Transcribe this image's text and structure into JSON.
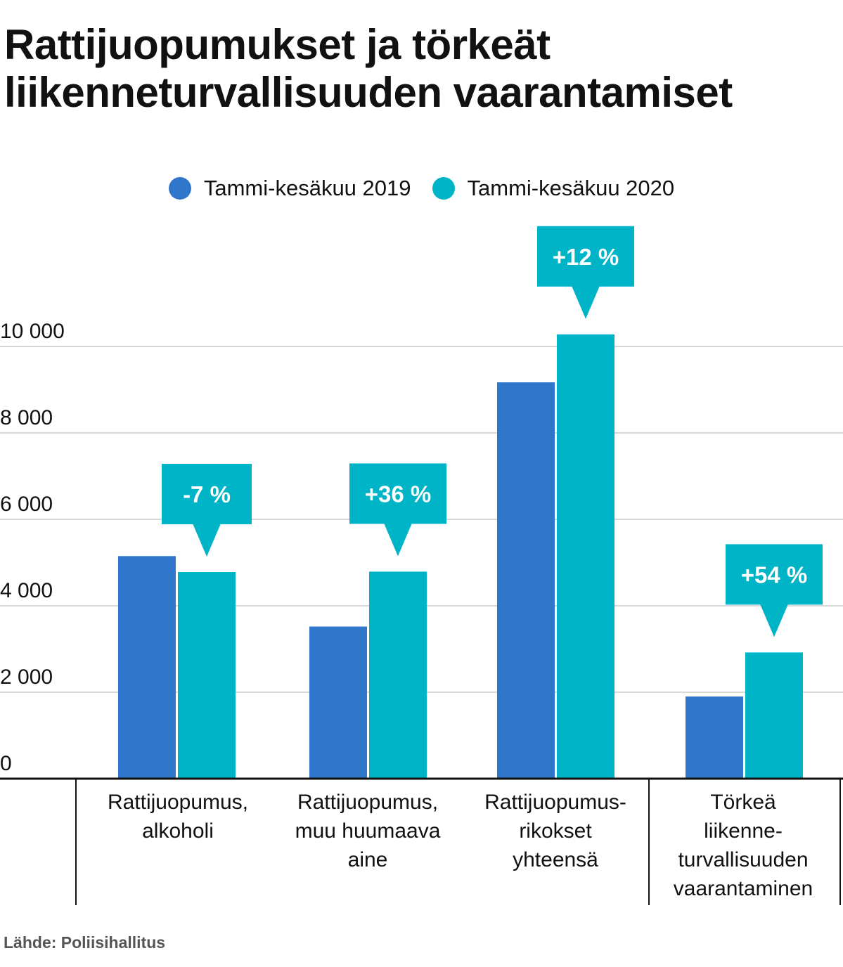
{
  "chart_data": {
    "type": "bar",
    "title_lines": [
      "Rattijuopumukset ja törkeät",
      "liikenneturvallisuuden vaarantamiset"
    ],
    "categories": [
      [
        "Rattijuopumus,",
        "alkoholi"
      ],
      [
        "Rattijuopumus,",
        "muu huumaava",
        "aine"
      ],
      [
        "Rattijuopumus-",
        "rikokset",
        "yhteensä"
      ],
      [
        "Törkeä",
        "liikenne-",
        "turvallisuuden",
        "vaarantaminen"
      ]
    ],
    "series": [
      {
        "name": "Tammi-kesäkuu 2019",
        "color": "#3077cc",
        "values": [
          5150,
          3520,
          9170,
          1900
        ]
      },
      {
        "name": "Tammi-kesäkuu 2020",
        "color": "#00b4c8",
        "values": [
          4780,
          4790,
          10280,
          2920
        ]
      }
    ],
    "change_labels": [
      "-7 %",
      "+36 %",
      "+12 %",
      "+54 %"
    ],
    "y_ticks": [
      0,
      2000,
      4000,
      6000,
      8000,
      10000
    ],
    "y_tick_labels": [
      "0",
      "2 000",
      "4 000",
      "6 000",
      "8 000",
      "10 000"
    ],
    "ylim": [
      0,
      10000
    ],
    "xlabel": "",
    "ylabel": "",
    "grid": true,
    "legend_position": "top-center",
    "callout_color": "#00b4c8",
    "source": "Lähde: Poliisihallitus"
  }
}
